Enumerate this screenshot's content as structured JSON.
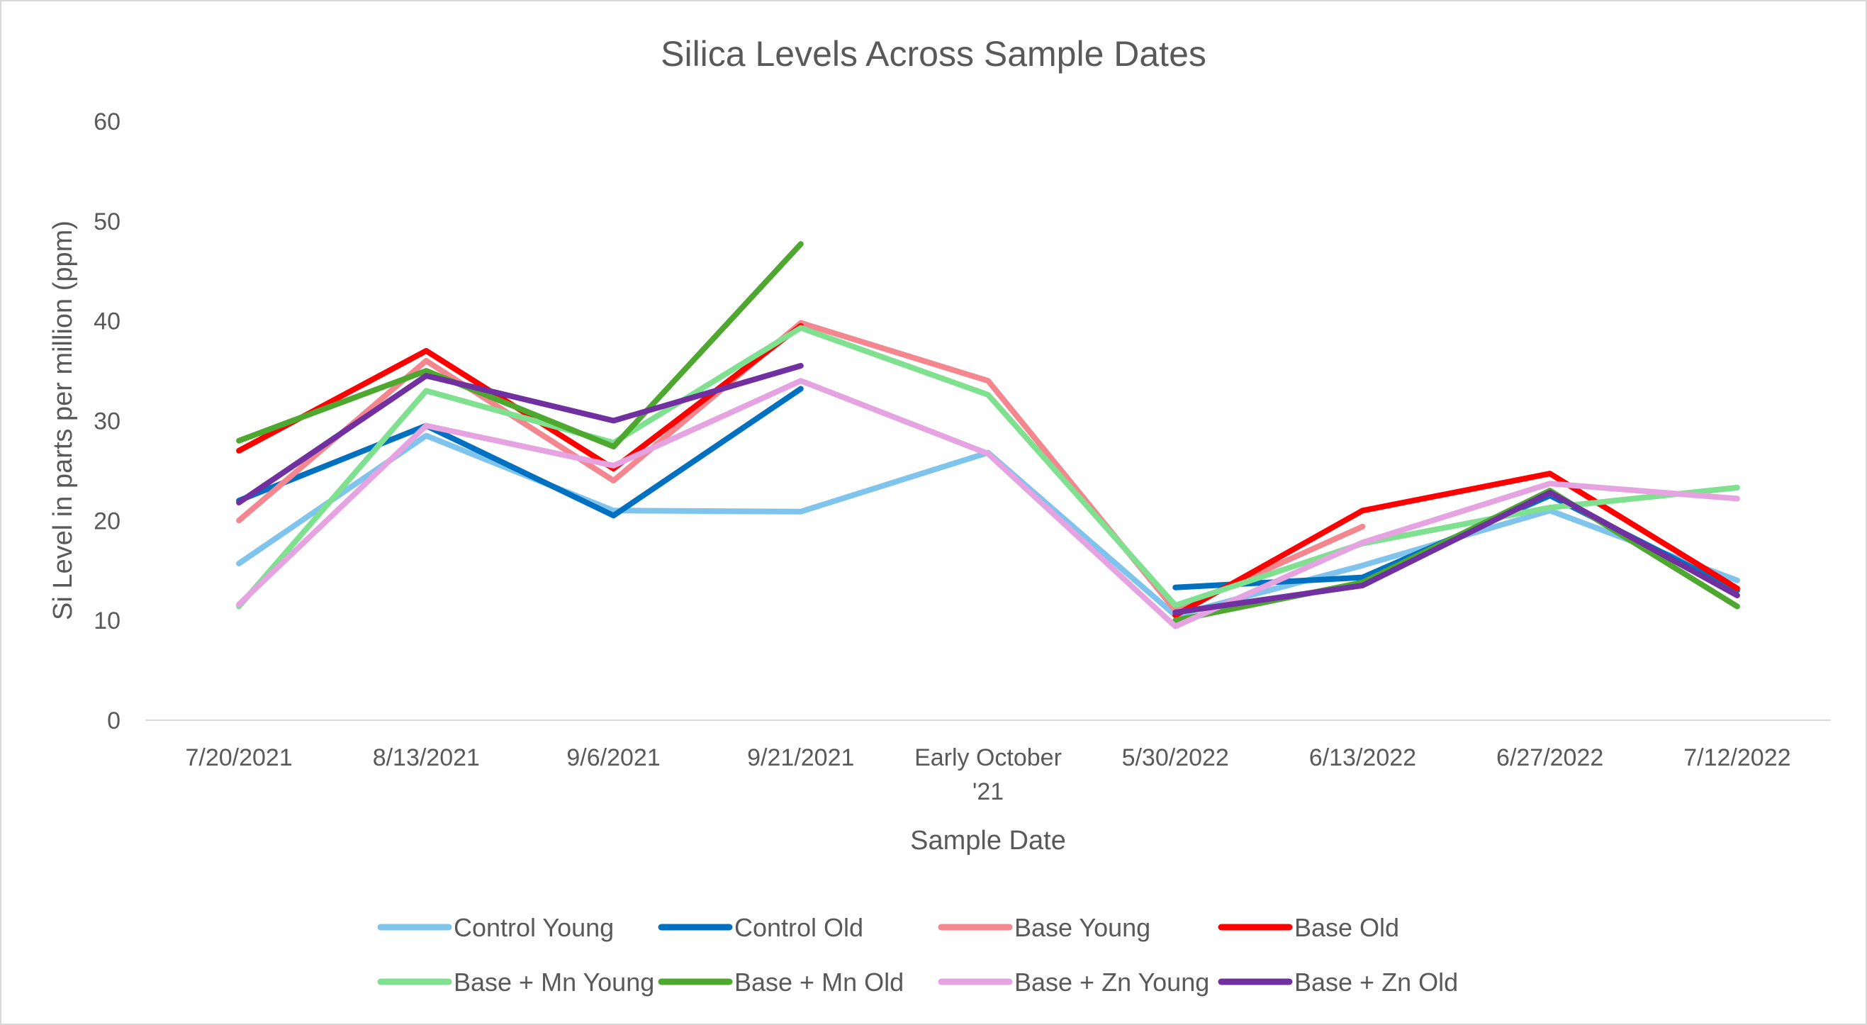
{
  "chart_data": {
    "type": "line",
    "title": "Silica Levels Across Sample Dates",
    "xlabel": "Sample Date",
    "ylabel": "Si Level in parts per million (ppm)",
    "ylim": [
      0,
      60
    ],
    "yticks": [
      "0",
      "10",
      "20",
      "30",
      "40",
      "50",
      "60"
    ],
    "grid": false,
    "legend_position": "bottom",
    "categories": [
      [
        "7/20/2021"
      ],
      [
        "8/13/2021"
      ],
      [
        "9/6/2021"
      ],
      [
        "9/21/2021"
      ],
      [
        "Early October",
        "'21"
      ],
      [
        "5/30/2022"
      ],
      [
        "6/13/2022"
      ],
      [
        "6/27/2022"
      ],
      [
        "7/12/2022"
      ]
    ],
    "series": [
      {
        "name": "Control Young",
        "color": "#7fc4ec",
        "values": [
          15.7,
          28.5,
          21.0,
          20.9,
          26.8,
          10.5,
          15.5,
          21.0,
          14.0
        ]
      },
      {
        "name": "Control Old",
        "color": "#0070c0",
        "values": [
          22.0,
          29.5,
          20.5,
          33.2,
          null,
          13.3,
          14.3,
          22.5,
          13.0
        ]
      },
      {
        "name": "Base Young",
        "color": "#f4868f",
        "values": [
          20.0,
          36.0,
          24.0,
          39.8,
          34.0,
          11.0,
          19.4,
          null,
          null
        ]
      },
      {
        "name": "Base Old",
        "color": "#ff0000",
        "values": [
          27.0,
          37.0,
          25.2,
          39.5,
          null,
          10.5,
          21.0,
          24.7,
          13.2
        ]
      },
      {
        "name": "Base + Mn Young",
        "color": "#7fe090",
        "values": [
          11.4,
          33.0,
          27.8,
          39.3,
          32.6,
          11.5,
          17.7,
          21.3,
          23.3
        ]
      },
      {
        "name": "Base + Mn Old",
        "color": "#4ea72e",
        "values": [
          28.0,
          35.0,
          27.4,
          47.7,
          null,
          10.0,
          13.8,
          23.0,
          11.4
        ]
      },
      {
        "name": "Base + Zn Young",
        "color": "#e6a3e1",
        "values": [
          11.6,
          29.5,
          25.5,
          34.0,
          26.7,
          9.4,
          17.8,
          23.7,
          22.2
        ]
      },
      {
        "name": "Base + Zn Old",
        "color": "#7030a0",
        "values": [
          21.8,
          34.5,
          30.0,
          35.5,
          null,
          10.8,
          13.5,
          22.8,
          12.5
        ]
      }
    ]
  }
}
